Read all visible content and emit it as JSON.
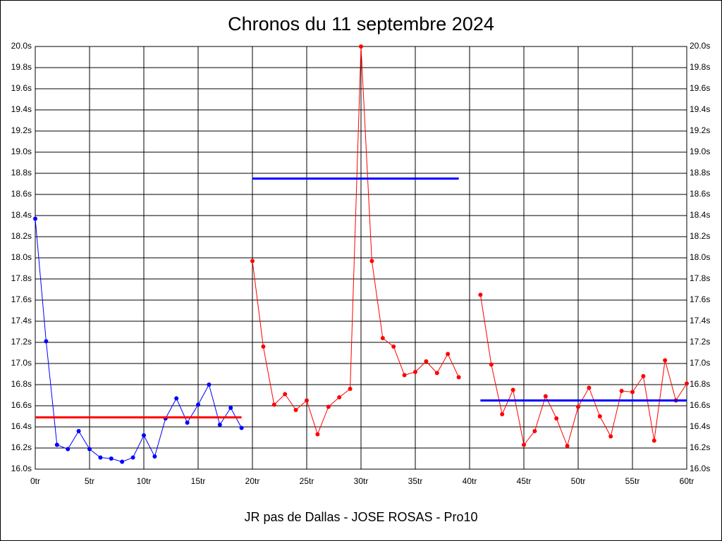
{
  "chart_data": {
    "type": "line",
    "title": "Chronos du 11 septembre 2024",
    "xlabel": "JR pas de Dallas - JOSE ROSAS - Pro10",
    "xlim": [
      0,
      60
    ],
    "xticks": [
      {
        "value": 0,
        "label": "0tr"
      },
      {
        "value": 5,
        "label": "5tr"
      },
      {
        "value": 10,
        "label": "10tr"
      },
      {
        "value": 15,
        "label": "15tr"
      },
      {
        "value": 20,
        "label": "20tr"
      },
      {
        "value": 25,
        "label": "25tr"
      },
      {
        "value": 30,
        "label": "30tr"
      },
      {
        "value": 35,
        "label": "35tr"
      },
      {
        "value": 40,
        "label": "40tr"
      },
      {
        "value": 45,
        "label": "45tr"
      },
      {
        "value": 50,
        "label": "50tr"
      },
      {
        "value": 55,
        "label": "55tr"
      },
      {
        "value": 60,
        "label": "60tr"
      }
    ],
    "ylim": [
      16.0,
      20.0
    ],
    "yticks": [
      {
        "value": 16.0,
        "label": "16.0s"
      },
      {
        "value": 16.2,
        "label": "16.2s"
      },
      {
        "value": 16.4,
        "label": "16.4s"
      },
      {
        "value": 16.6,
        "label": "16.6s"
      },
      {
        "value": 16.8,
        "label": "16.8s"
      },
      {
        "value": 17.0,
        "label": "17.0s"
      },
      {
        "value": 17.2,
        "label": "17.2s"
      },
      {
        "value": 17.4,
        "label": "17.4s"
      },
      {
        "value": 17.6,
        "label": "17.6s"
      },
      {
        "value": 17.8,
        "label": "17.8s"
      },
      {
        "value": 18.0,
        "label": "18.0s"
      },
      {
        "value": 18.2,
        "label": "18.2s"
      },
      {
        "value": 18.4,
        "label": "18.4s"
      },
      {
        "value": 18.6,
        "label": "18.6s"
      },
      {
        "value": 18.8,
        "label": "18.8s"
      },
      {
        "value": 19.0,
        "label": "19.0s"
      },
      {
        "value": 19.2,
        "label": "19.2s"
      },
      {
        "value": 19.4,
        "label": "19.4s"
      },
      {
        "value": 19.6,
        "label": "19.6s"
      },
      {
        "value": 19.8,
        "label": "19.8s"
      },
      {
        "value": 20.0,
        "label": "20.0s"
      }
    ],
    "grid": true,
    "series": [
      {
        "color": "#0000ff",
        "x": [
          0,
          1,
          2,
          3,
          4,
          5,
          6,
          7,
          8,
          9,
          10,
          11,
          12,
          13,
          14,
          15,
          16,
          17,
          18,
          19
        ],
        "values": [
          18.37,
          17.21,
          16.23,
          16.19,
          16.36,
          16.19,
          16.11,
          16.1,
          16.07,
          16.11,
          16.32,
          16.12,
          16.48,
          16.67,
          16.44,
          16.61,
          16.8,
          16.42,
          16.58,
          16.39
        ]
      },
      {
        "color": "#ff0000",
        "x": [
          20,
          21,
          22,
          23,
          24,
          25,
          26,
          27,
          28,
          29,
          30,
          31,
          32,
          33,
          34,
          35,
          36,
          37,
          38,
          39
        ],
        "values": [
          17.97,
          17.16,
          16.61,
          16.71,
          16.56,
          16.65,
          16.33,
          16.59,
          16.68,
          16.76,
          20.0,
          17.97,
          17.24,
          17.16,
          16.89,
          16.92,
          17.02,
          16.91,
          17.09,
          16.87
        ]
      },
      {
        "color": "#ff0000",
        "x": [
          41,
          42,
          43,
          44,
          45,
          46,
          47,
          48,
          49,
          50,
          51,
          52,
          53,
          54,
          55,
          56,
          57,
          58,
          59,
          60
        ],
        "values": [
          17.65,
          16.99,
          16.52,
          16.75,
          16.23,
          16.36,
          16.69,
          16.48,
          16.22,
          16.59,
          16.77,
          16.5,
          16.31,
          16.74,
          16.73,
          16.88,
          16.27,
          17.03,
          16.65,
          16.81
        ]
      }
    ],
    "reference_lines": [
      {
        "color": "#ff0000",
        "value": 16.49,
        "x": [
          0,
          19
        ]
      },
      {
        "color": "#0000ff",
        "value": 18.75,
        "x": [
          20,
          39
        ]
      },
      {
        "color": "#0000ff",
        "value": 16.65,
        "x": [
          41,
          60
        ]
      }
    ]
  }
}
